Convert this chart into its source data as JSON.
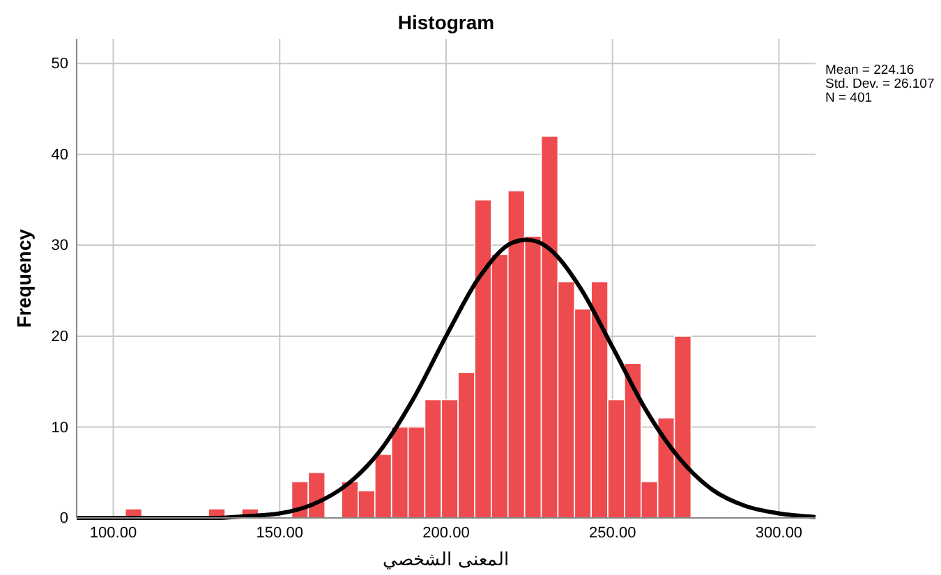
{
  "chart_data": {
    "type": "histogram",
    "title": "Histogram",
    "xlabel": "المعنى الشخصي",
    "ylabel": "Frequency",
    "annotations": [
      "Mean = 224.16",
      "Std. Dev. = 26.107",
      "N = 401"
    ],
    "xlim": [
      89,
      311
    ],
    "ylim": [
      0,
      52.7
    ],
    "xticks": [
      {
        "value": 100,
        "label": "100.00"
      },
      {
        "value": 150,
        "label": "150.00"
      },
      {
        "value": 200,
        "label": "200.00"
      },
      {
        "value": 250,
        "label": "250.00"
      },
      {
        "value": 300,
        "label": "300.00"
      }
    ],
    "yticks": [
      0,
      10,
      20,
      30,
      40,
      50
    ],
    "grid": true,
    "series": [
      {
        "color": "#ee4b4e",
        "bins": [
          103.6,
          108.6,
          113.6,
          118.6,
          123.6,
          128.6,
          133.6,
          138.6,
          143.6,
          148.6,
          153.6,
          158.6,
          163.6,
          168.6,
          173.6,
          178.6,
          183.6,
          188.6,
          193.6,
          198.6,
          203.6,
          208.6,
          213.6,
          218.6,
          223.6,
          228.6,
          233.6,
          238.6,
          243.6,
          248.6,
          253.6,
          258.6,
          263.6,
          268.6,
          273.6
        ],
        "values": [
          1,
          0,
          0,
          0,
          0,
          1,
          0,
          1,
          0,
          0,
          4,
          5,
          0,
          4,
          3,
          7,
          10,
          10,
          13,
          13,
          16,
          35,
          29,
          36,
          31,
          42,
          26,
          23,
          26,
          13,
          17,
          4,
          11,
          20
        ]
      },
      {
        "type": "line",
        "color": "#000000",
        "x": [
          89,
          100,
          110,
          120,
          130,
          140,
          150,
          160,
          170,
          180,
          190,
          200,
          210,
          220,
          224.16,
          230,
          240,
          250,
          260,
          270,
          280,
          290,
          300,
          311
        ],
        "values": [
          0,
          0,
          0,
          0,
          0,
          0.2,
          0.5,
          1.5,
          3.6,
          7.3,
          13,
          20,
          26.5,
          30.3,
          30.6,
          29.9,
          25.5,
          18.8,
          11.9,
          6.6,
          3.1,
          1.3,
          0.5,
          0.1
        ]
      }
    ]
  }
}
